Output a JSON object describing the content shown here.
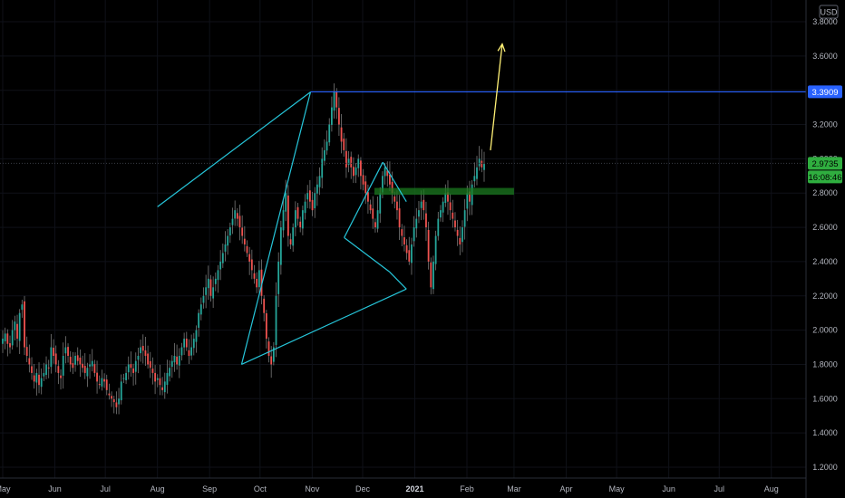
{
  "currency": "USD",
  "chart_data": {
    "type": "candlestick",
    "y_axis": {
      "ticks": [
        "1.2000",
        "1.4000",
        "1.6000",
        "1.8000",
        "2.0000",
        "2.2000",
        "2.4000",
        "2.6000",
        "2.8000",
        "3.0000",
        "3.2000",
        "3.4000",
        "3.6000",
        "3.8000"
      ],
      "ylim": [
        1.13,
        3.88
      ],
      "currency": "USD"
    },
    "x_axis": {
      "ticks": [
        "May",
        "Jun",
        "Jul",
        "Aug",
        "Sep",
        "Oct",
        "Nov",
        "Dec",
        "2021",
        "Feb",
        "Mar",
        "Apr",
        "May",
        "Jun",
        "Jul",
        "Aug"
      ],
      "range": [
        "2020-05-01",
        "2021-08-25"
      ]
    },
    "colors": {
      "up": "#26a69a",
      "down": "#ef5350",
      "wick": "#7a7a7a",
      "cyan_lines": "#26c6da",
      "resistance": "#2962ff",
      "zone": "#1b7a1f",
      "arrow": "#fff176",
      "last_price_tag": "#2fae3f",
      "resistance_tag": "#2962ff"
    },
    "candles_close": [
      1.95,
      1.98,
      1.92,
      1.9,
      2.0,
      2.05,
      1.95,
      2.1,
      2.15,
      1.9,
      1.85,
      1.8,
      1.75,
      1.7,
      1.75,
      1.68,
      1.72,
      1.75,
      1.8,
      1.78,
      1.9,
      1.85,
      1.8,
      1.75,
      1.72,
      1.85,
      1.9,
      1.85,
      1.8,
      1.78,
      1.85,
      1.82,
      1.8,
      1.78,
      1.75,
      1.78,
      1.8,
      1.82,
      1.75,
      1.7,
      1.68,
      1.72,
      1.7,
      1.65,
      1.62,
      1.6,
      1.58,
      1.55,
      1.6,
      1.7,
      1.72,
      1.75,
      1.8,
      1.78,
      1.75,
      1.82,
      1.85,
      1.9,
      1.88,
      1.85,
      1.8,
      1.78,
      1.75,
      1.7,
      1.72,
      1.68,
      1.65,
      1.7,
      1.75,
      1.78,
      1.82,
      1.85,
      1.8,
      1.85,
      1.9,
      1.95,
      1.9,
      1.85,
      1.9,
      1.95,
      2.0,
      2.1,
      2.15,
      2.2,
      2.25,
      2.3,
      2.2,
      2.25,
      2.3,
      2.35,
      2.4,
      2.45,
      2.5,
      2.55,
      2.6,
      2.65,
      2.7,
      2.65,
      2.6,
      2.55,
      2.5,
      2.45,
      2.4,
      2.35,
      2.3,
      2.25,
      2.35,
      2.2,
      2.1,
      1.95,
      1.85,
      1.8,
      1.9,
      2.2,
      2.4,
      2.6,
      2.7,
      2.8,
      2.55,
      2.5,
      2.6,
      2.7,
      2.65,
      2.6,
      2.7,
      2.75,
      2.8,
      2.75,
      2.7,
      2.8,
      2.85,
      2.9,
      3.0,
      3.05,
      3.1,
      3.2,
      3.3,
      3.39,
      3.3,
      3.2,
      3.1,
      3.05,
      2.95,
      3.0,
      2.95,
      2.9,
      2.95,
      3.0,
      2.9,
      2.85,
      2.8,
      2.75,
      2.7,
      2.65,
      2.6,
      2.7,
      2.8,
      2.9,
      2.95,
      2.9,
      2.85,
      2.8,
      2.75,
      2.7,
      2.6,
      2.55,
      2.5,
      2.45,
      2.4,
      2.5,
      2.6,
      2.65,
      2.7,
      2.75,
      2.7,
      2.6,
      2.4,
      2.25,
      2.4,
      2.55,
      2.65,
      2.7,
      2.75,
      2.8,
      2.75,
      2.7,
      2.65,
      2.6,
      2.55,
      2.5,
      2.6,
      2.7,
      2.8,
      2.75,
      2.85,
      2.9,
      2.95,
      3.0,
      2.95,
      2.97
    ],
    "annotations": {
      "resistance_level": 3.3909,
      "last_price": 2.9735,
      "countdown": "16:08:46",
      "zone": [
        2.79,
        2.83
      ],
      "lines": [
        {
          "from": [
            "2020-08-01",
            2.72
          ],
          "to": [
            "2020-10-31",
            3.39
          ]
        },
        {
          "from": [
            "2020-09-20",
            1.8
          ],
          "to": [
            "2020-10-31",
            3.39
          ]
        },
        {
          "from": [
            "2020-09-20",
            1.8
          ],
          "to": [
            "2020-12-27",
            2.24
          ]
        },
        {
          "from": [
            "2020-12-13",
            2.98
          ],
          "to": [
            "2020-11-20",
            2.54
          ]
        },
        {
          "from": [
            "2020-11-20",
            2.54
          ],
          "to": [
            "2020-12-17",
            2.34
          ]
        },
        {
          "from": [
            "2020-12-17",
            2.34
          ],
          "to": [
            "2020-12-27",
            2.24
          ]
        },
        {
          "from": [
            "2020-12-13",
            2.98
          ],
          "to": [
            "2020-12-27",
            2.75
          ]
        }
      ],
      "arrow": {
        "from": [
          "2021-02-15",
          3.05
        ],
        "to": [
          "2021-02-22",
          3.67
        ]
      }
    }
  }
}
